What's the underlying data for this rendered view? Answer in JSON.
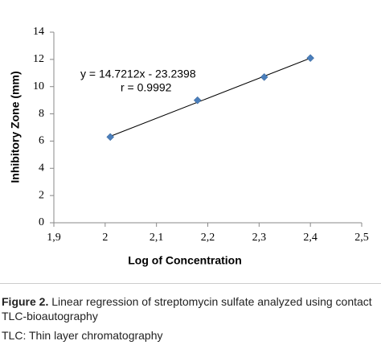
{
  "chart_data": {
    "type": "scatter",
    "x_label": "Log of Concentration",
    "y_label": "Inhibitory Zone (mm)",
    "x": [
      2.01,
      2.18,
      2.31,
      2.4
    ],
    "values": [
      6.3,
      9.0,
      10.7,
      12.1
    ],
    "color": "#4a7ebb",
    "xlim": [
      1.9,
      2.5
    ],
    "xticks": [
      {
        "value": 1.9,
        "label": "1,9"
      },
      2,
      {
        "value": 2.1,
        "label": "2,1"
      },
      {
        "value": 2.2,
        "label": "2,2"
      },
      {
        "value": 2.3,
        "label": "2,3"
      },
      {
        "value": 2.4,
        "label": "2,4"
      },
      {
        "value": 2.5,
        "label": "2,5"
      }
    ],
    "ylim": [
      0,
      14
    ],
    "yticks": [
      0,
      2,
      4,
      6,
      8,
      10,
      12,
      14
    ],
    "grid": false,
    "trendline": {
      "slope": 14.7212,
      "intercept": -23.2398
    },
    "annotations": [
      "y = 14.7212x - 23.2398",
      "r = 0.9992"
    ]
  },
  "caption": {
    "label": "Figure 2.",
    "text": "Linear regression of streptomycin sulfate analyzed using contact TLC-bioautography",
    "note": "TLC: Thin layer chromatography"
  }
}
